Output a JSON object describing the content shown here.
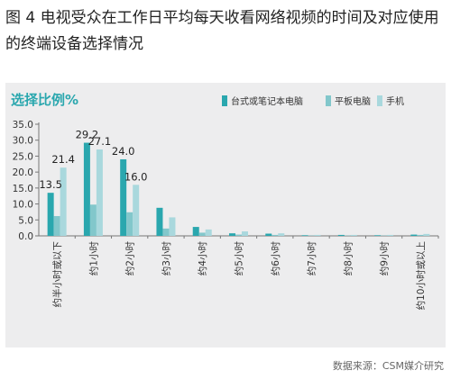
{
  "figure": {
    "title": "图 4 电视受众在工作日平均每天收看网络视频的时间及对应使用的终端设备选择情况",
    "source": "数据来源：CSM媒介研究"
  },
  "colors": {
    "series": [
      "#2aa7ae",
      "#82c7cb",
      "#a9d8dd"
    ],
    "label": "#2aa7ae",
    "panel": "#ededee"
  },
  "chart_data": {
    "type": "bar",
    "title": "",
    "ylabel": "选择比例%",
    "xlabel": "",
    "ylim": [
      0,
      35
    ],
    "yticks": [
      "0.0",
      "5.0",
      "10.0",
      "15.0",
      "20.0",
      "25.0",
      "30.0",
      "35.0"
    ],
    "grid": false,
    "legend_position": "top-right",
    "categories": [
      "约半小时或以下",
      "约1小时",
      "约2小时",
      "约3小时",
      "约4小时",
      "约5小时",
      "约6小时",
      "约7小时",
      "约8小时",
      "约9小时",
      "约10小时或以上"
    ],
    "series": [
      {
        "name": "台式或笔记本电脑",
        "values": [
          13.5,
          29.2,
          24.0,
          8.8,
          2.8,
          0.8,
          0.7,
          0.2,
          0.3,
          0.2,
          0.4
        ]
      },
      {
        "name": "平板电脑",
        "values": [
          6.2,
          9.8,
          7.4,
          2.3,
          1.0,
          0.4,
          0.3,
          0.1,
          0.1,
          0.1,
          0.3
        ]
      },
      {
        "name": "手机",
        "values": [
          21.4,
          27.1,
          16.0,
          5.8,
          2.0,
          1.4,
          0.8,
          0.3,
          0.3,
          0.3,
          0.6
        ]
      }
    ],
    "data_labels": [
      {
        "series": 0,
        "index": 0,
        "text": "13.5"
      },
      {
        "series": 2,
        "index": 0,
        "text": "21.4"
      },
      {
        "series": 0,
        "index": 1,
        "text": "29.2"
      },
      {
        "series": 2,
        "index": 1,
        "text": "27.1"
      },
      {
        "series": 0,
        "index": 2,
        "text": "24.0"
      },
      {
        "series": 2,
        "index": 2,
        "text": "16.0"
      }
    ]
  }
}
